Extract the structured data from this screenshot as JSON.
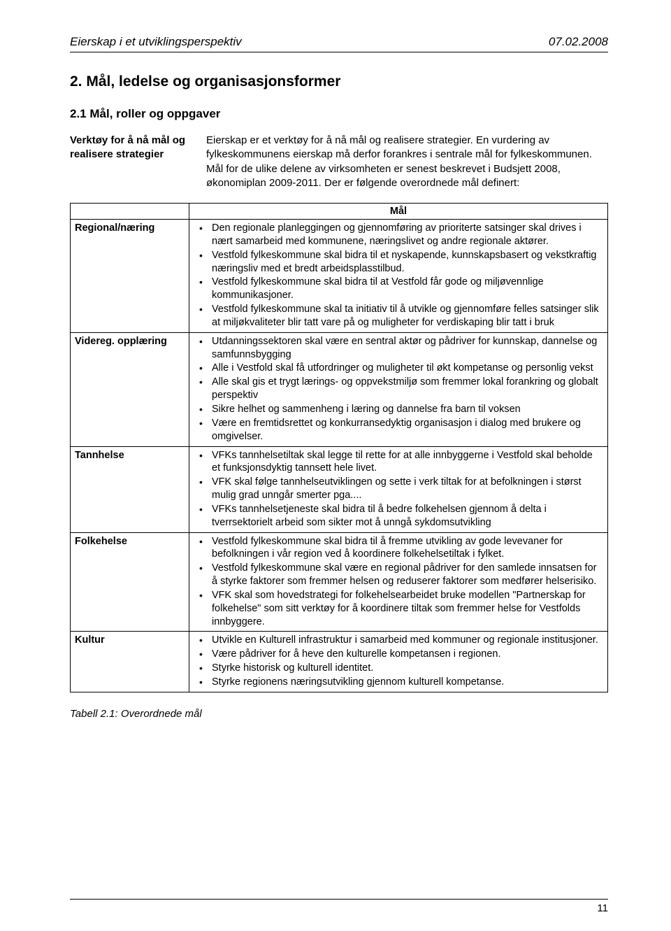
{
  "header": {
    "title": "Eierskap i et utviklingsperspektiv",
    "date": "07.02.2008"
  },
  "h2": "2. Mål, ledelse og organisasjonsformer",
  "h3": "2.1 Mål, roller og oppgaver",
  "intro": {
    "label": "Verktøy for å nå mål og realisere strategier",
    "body": "Eierskap er et verktøy for å nå mål og realisere strategier. En vurdering av fylkeskommunens eierskap må derfor forankres i sentrale mål for fylkeskommunen. Mål for de ulike delene av virksomheten er senest beskrevet i Budsjett 2008, økonomiplan 2009-2011. Der er følgende overordnede mål definert:"
  },
  "table": {
    "header_label": "",
    "header_mal": "Mål",
    "rows": [
      {
        "label": "Regional/næring",
        "points": [
          "Den regionale planleggingen og gjennomføring av prioriterte satsinger skal drives i nært samarbeid med kommunene, næringslivet og andre regionale aktører.",
          "Vestfold fylkeskommune skal bidra til et nyskapende, kunnskapsbasert og vekstkraftig næringsliv med et bredt arbeidsplasstilbud.",
          "Vestfold fylkeskommune skal bidra til at Vestfold får gode og miljøvennlige kommunikasjoner.",
          "Vestfold fylkeskommune skal ta initiativ til å utvikle og gjennomføre felles satsinger slik at miljøkvaliteter blir tatt vare på og muligheter for verdiskaping blir tatt i bruk"
        ]
      },
      {
        "label": "Videreg. opplæring",
        "points": [
          "Utdanningssektoren skal være en sentral aktør og pådriver for kunnskap, dannelse og samfunnsbygging",
          "Alle i Vestfold skal få utfordringer og muligheter til økt kompetanse og personlig vekst",
          "Alle skal gis et trygt lærings- og oppvekstmiljø som fremmer lokal forankring og globalt perspektiv",
          "Sikre helhet og sammenheng i læring og dannelse fra barn til voksen",
          "Være en fremtidsrettet og konkurransedyktig organisasjon i dialog med brukere og omgivelser."
        ]
      },
      {
        "label": "Tannhelse",
        "points": [
          "VFKs tannhelsetiltak skal legge til rette for at alle innbyggerne i Vestfold skal beholde et funksjonsdyktig tannsett hele livet.",
          "VFK skal følge tannhelseutviklingen og sette i verk tiltak for at befolkningen i størst mulig grad unngår smerter pga....",
          "VFKs tannhelsetjeneste skal bidra til å bedre folkehelsen gjennom å delta i tverrsektorielt arbeid som sikter mot å unngå sykdomsutvikling"
        ]
      },
      {
        "label": "Folkehelse",
        "points": [
          "Vestfold fylkeskommune skal bidra til å fremme utvikling av gode levevaner for befolkningen i vår region ved å koordinere folkehelsetiltak i fylket.",
          "Vestfold fylkeskommune skal være en regional pådriver for den samlede innsatsen for å styrke faktorer som fremmer helsen og reduserer faktorer som medfører helserisiko.",
          "VFK skal som hovedstrategi for folkehelsearbeidet bruke modellen \"Partnerskap for folkehelse\" som sitt verktøy for å koordinere tiltak som fremmer helse for Vestfolds innbyggere."
        ]
      },
      {
        "label": "Kultur",
        "points": [
          "Utvikle en Kulturell infrastruktur i samarbeid med kommuner og regionale institusjoner.",
          "Være pådriver for å heve den kulturelle kompetansen i regionen.",
          "Styrke historisk og kulturell identitet.",
          "Styrke regionens næringsutvikling gjennom kulturell kompetanse."
        ]
      }
    ]
  },
  "caption": "Tabell 2.1: Overordnede mål",
  "page_number": "11"
}
